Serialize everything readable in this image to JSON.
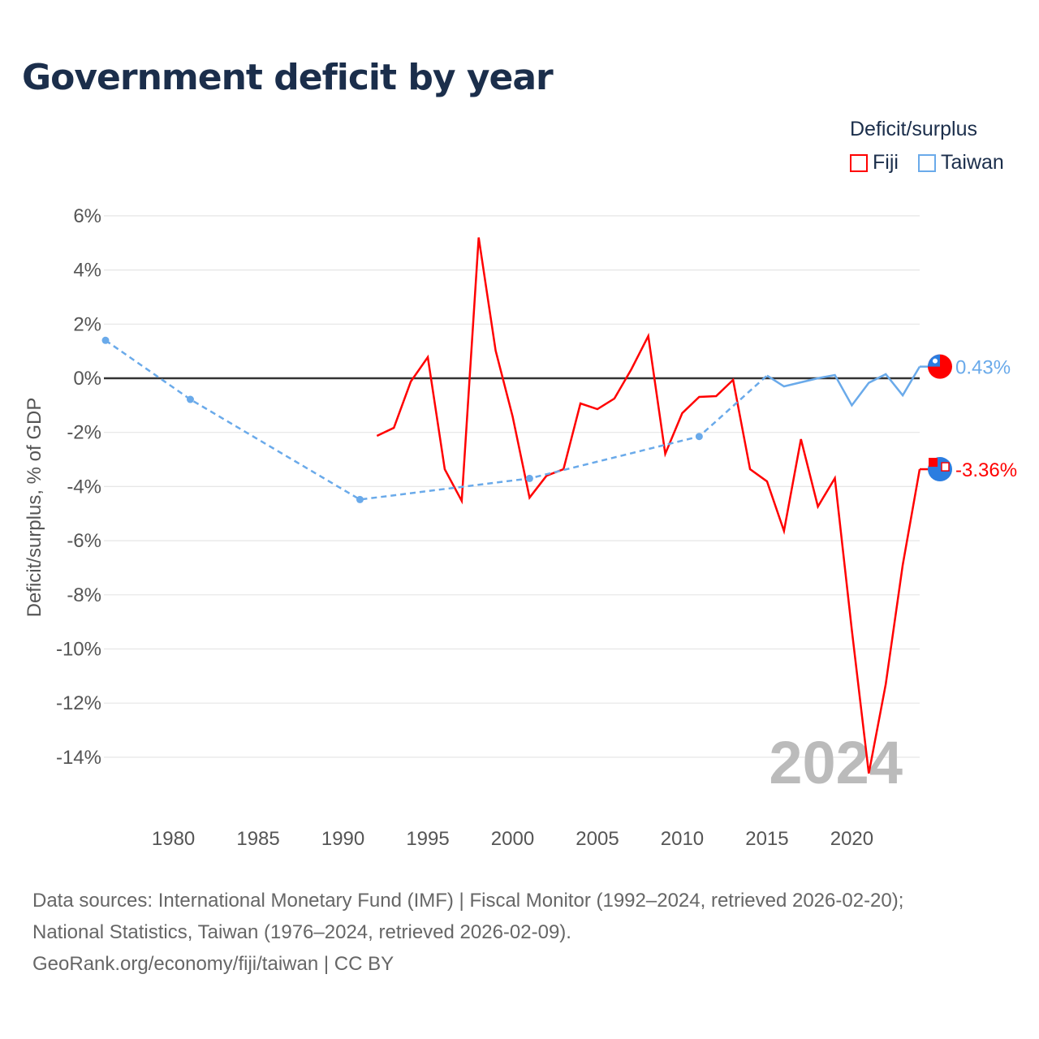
{
  "chart_data": {
    "type": "line",
    "title": "Government deficit by year",
    "ylabel": "Deficit/surplus, % of GDP",
    "xlabel": "",
    "ylim": [
      -14,
      6
    ],
    "xlim": [
      1976,
      2024
    ],
    "yticks": [
      6,
      4,
      2,
      0,
      -2,
      -4,
      -6,
      -8,
      -10,
      -12,
      -14
    ],
    "ytick_labels": [
      "6%",
      "4%",
      "2%",
      "0%",
      "-2%",
      "-4%",
      "-6%",
      "-8%",
      "-10%",
      "-12%",
      "-14%"
    ],
    "xticks": [
      1980,
      1985,
      1990,
      1995,
      2000,
      2005,
      2010,
      2015,
      2020
    ],
    "xtick_labels": [
      "1980",
      "1985",
      "1990",
      "1995",
      "2000",
      "2005",
      "2010",
      "2015",
      "2020"
    ],
    "legend_title": "Deficit/surplus",
    "legend_position": "top-right",
    "year_watermark": "2024",
    "series": [
      {
        "name": "Fiji",
        "color": "#ff0000",
        "end_label": "-3.36%",
        "x": [
          1992,
          1993,
          1994,
          1995,
          1996,
          1997,
          1998,
          1999,
          2000,
          2001,
          2002,
          2003,
          2004,
          2005,
          2006,
          2007,
          2008,
          2009,
          2010,
          2011,
          2012,
          2013,
          2014,
          2015,
          2016,
          2017,
          2018,
          2019,
          2020,
          2021,
          2022,
          2023,
          2024
        ],
        "values": [
          -2.13,
          -1.83,
          -0.12,
          0.78,
          -3.36,
          -4.53,
          5.2,
          1.02,
          -1.41,
          -4.41,
          -3.6,
          -3.36,
          -0.93,
          -1.14,
          -0.75,
          0.33,
          1.56,
          -2.79,
          -1.29,
          -0.69,
          -0.66,
          -0.06,
          -3.36,
          -3.81,
          -5.64,
          -2.25,
          -4.74,
          -3.69,
          -9.3,
          -14.6,
          -11.3,
          -6.9,
          -3.36
        ]
      },
      {
        "name": "Taiwan",
        "color": "#6aaaea",
        "end_label": "0.43%",
        "x": [
          1976,
          1981,
          1991,
          2001,
          2011,
          2015,
          2016,
          2017,
          2018,
          2019,
          2020,
          2021,
          2022,
          2023,
          2024
        ],
        "values": [
          1.4,
          -0.78,
          -4.48,
          -3.7,
          -2.15,
          0.1,
          -0.3,
          -0.15,
          0.0,
          0.12,
          -1.0,
          -0.17,
          0.15,
          -0.63,
          0.43
        ],
        "sparse_until": 2015
      }
    ]
  },
  "footer": {
    "line1": "Data sources: International Monetary Fund (IMF) | Fiscal Monitor (1992–2024, retrieved 2026-02-20);",
    "line2": "National Statistics, Taiwan (1976–2024, retrieved 2026-02-09).",
    "line3": "GeoRank.org/economy/fiji/taiwan | CC BY"
  }
}
